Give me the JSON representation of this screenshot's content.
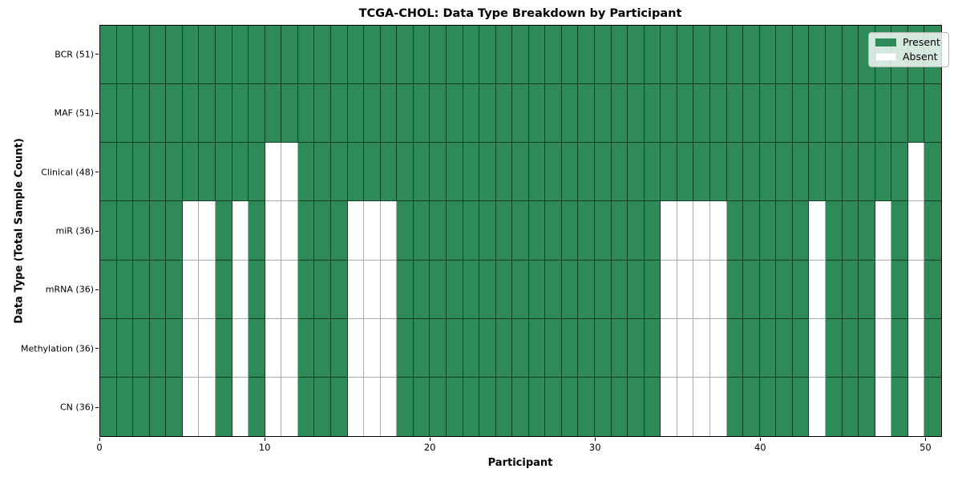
{
  "figure_title": "TCGA-CHOL: Data Type Breakdown by Participant",
  "chart_data": {
    "type": "heatmap",
    "title": "TCGA-CHOL: Data Type Breakdown by Participant",
    "xlabel": "Participant",
    "ylabel": "Data Type (Total Sample Count)",
    "x_ticks": [
      0,
      10,
      20,
      30,
      40,
      50
    ],
    "xlim": [
      0,
      51
    ],
    "n_participants": 51,
    "grid": true,
    "legend_position": "upper right",
    "colors": {
      "present": "#2e8b57",
      "absent": "#ffffff"
    },
    "legend": [
      {
        "label": "Present",
        "state": "present",
        "color": "#2e8b57"
      },
      {
        "label": "Absent",
        "state": "absent",
        "color": "#ffffff"
      }
    ],
    "rows": [
      {
        "label": "BCR (51)",
        "data_type": "BCR",
        "total_sample_count": 51,
        "absent_participants": []
      },
      {
        "label": "MAF (51)",
        "data_type": "MAF",
        "total_sample_count": 51,
        "absent_participants": []
      },
      {
        "label": "Clinical (48)",
        "data_type": "Clinical",
        "total_sample_count": 48,
        "absent_participants": [
          10,
          11,
          49
        ]
      },
      {
        "label": "miR (36)",
        "data_type": "miR",
        "total_sample_count": 36,
        "absent_participants": [
          5,
          6,
          8,
          10,
          11,
          15,
          16,
          17,
          34,
          35,
          36,
          37,
          43,
          47,
          49
        ]
      },
      {
        "label": "mRNA (36)",
        "data_type": "mRNA",
        "total_sample_count": 36,
        "absent_participants": [
          5,
          6,
          8,
          10,
          11,
          15,
          16,
          17,
          34,
          35,
          36,
          37,
          43,
          47,
          49
        ]
      },
      {
        "label": "Methylation (36)",
        "data_type": "Methylation",
        "total_sample_count": 36,
        "absent_participants": [
          5,
          6,
          8,
          10,
          11,
          15,
          16,
          17,
          34,
          35,
          36,
          37,
          43,
          47,
          49
        ]
      },
      {
        "label": "CN (36)",
        "data_type": "CN",
        "total_sample_count": 36,
        "absent_participants": [
          5,
          6,
          8,
          10,
          11,
          15,
          16,
          17,
          34,
          35,
          36,
          37,
          43,
          47,
          49
        ]
      }
    ]
  }
}
